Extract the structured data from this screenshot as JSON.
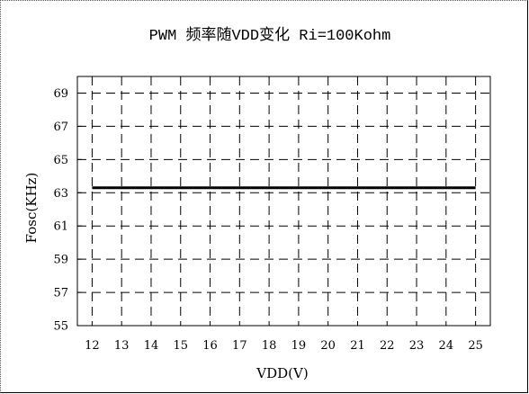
{
  "chart_data": {
    "type": "line",
    "title": "PWM 频率随VDD变化 Ri=100Kohm",
    "xlabel": "VDD(V)",
    "ylabel": "Fosc(KHz)",
    "x": [
      12,
      13,
      14,
      15,
      16,
      17,
      18,
      19,
      20,
      21,
      22,
      23,
      24,
      25
    ],
    "xticks": [
      "12",
      "13",
      "14",
      "15",
      "16",
      "17",
      "18",
      "19",
      "20",
      "21",
      "22",
      "23",
      "24",
      "25"
    ],
    "xlim": [
      11.5,
      25.5
    ],
    "yticks": [
      "55",
      "57",
      "59",
      "61",
      "63",
      "65",
      "67",
      "69"
    ],
    "ylim": [
      55,
      70
    ],
    "grid": true,
    "series": [
      {
        "values": [
          63.3,
          63.3,
          63.3,
          63.3,
          63.3,
          63.3,
          63.3,
          63.3,
          63.3,
          63.3,
          63.3,
          63.3,
          63.3,
          63.3
        ]
      }
    ]
  }
}
